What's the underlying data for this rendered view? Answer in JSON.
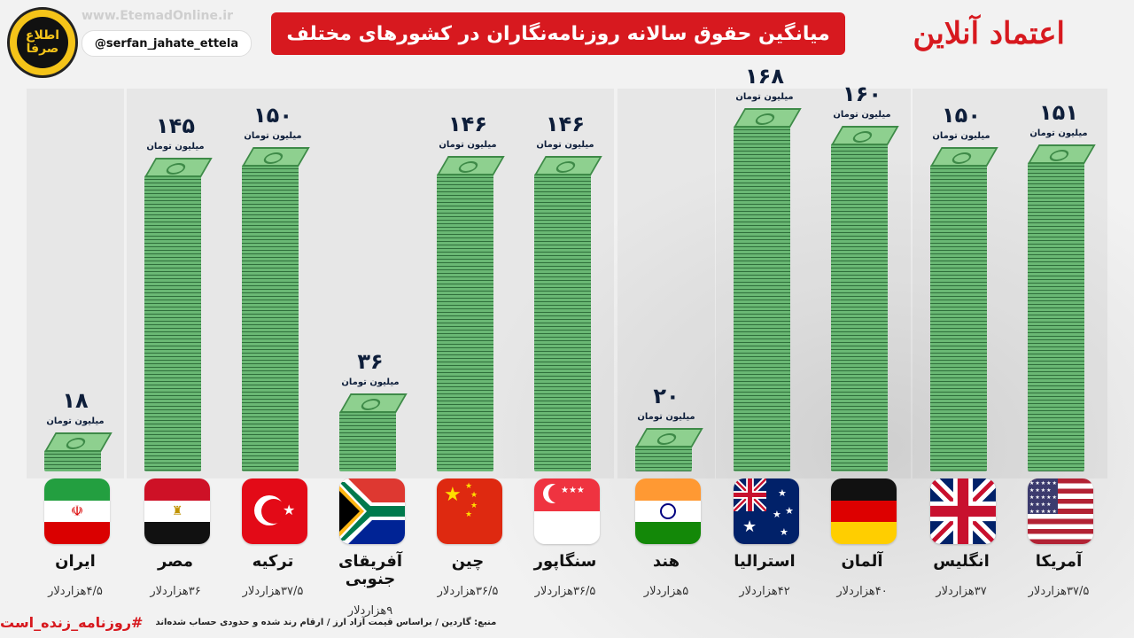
{
  "header": {
    "title": "میانگین حقوق سالانه روزنامه‌نگاران در کشورهای مختلف",
    "handle": "@serfan_jahate_ettela",
    "watermark": "www.EtemadOnline.ir",
    "brand": "اعتماد آنلاین",
    "left_logo": "اطلاع صرفا"
  },
  "chart_data": {
    "type": "bar",
    "unit": "میلیون تومان",
    "categories": [
      "ایران",
      "مصر",
      "ترکیه",
      "آفریقای جنوبی",
      "چین",
      "سنگاپور",
      "هند",
      "استرالیا",
      "آلمان",
      "انگلیس",
      "آمریکا"
    ],
    "values": [
      18,
      145,
      150,
      36,
      146,
      146,
      20,
      168,
      160,
      150,
      151
    ],
    "value_labels": [
      "۱۸",
      "۱۴۵",
      "۱۵۰",
      "۳۶",
      "۱۴۶",
      "۱۴۶",
      "۲۰",
      "۱۶۸",
      "۱۶۰",
      "۱۵۰",
      "۱۵۱"
    ],
    "usd_labels": [
      "۴/۵هزاردلار",
      "۳۶هزاردلار",
      "۳۷/۵هزاردلار",
      "۹هزاردلار",
      "۳۶/۵هزاردلار",
      "۳۶/۵هزاردلار",
      "۵هزاردلار",
      "۴۲هزاردلار",
      "۴۰هزاردلار",
      "۳۷هزاردلار",
      "۳۷/۵هزاردلار"
    ],
    "flags": [
      "iran-flag-icon",
      "egypt-flag-icon",
      "turkey-flag-icon",
      "south-africa-flag-icon",
      "china-flag-icon",
      "singapore-flag-icon",
      "india-flag-icon",
      "australia-flag-icon",
      "germany-flag-icon",
      "uk-flag-icon",
      "usa-flag-icon"
    ],
    "ylim": [
      0,
      168
    ]
  },
  "footer": {
    "source": "منبع: گاردین / براساس قیمت آزاد ارز / ارقام رند شده و حدودی حساب شده‌اند",
    "hashtag": "#روزنامه_زنده_است"
  },
  "colors": {
    "accent": "#d7191f",
    "money": "#53a05d",
    "text": "#0e1e3a"
  }
}
